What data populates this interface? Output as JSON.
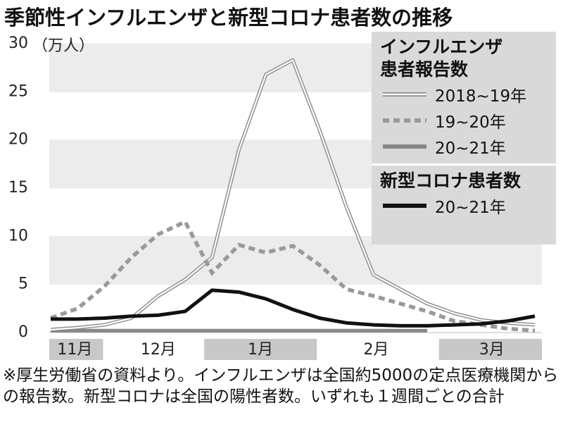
{
  "chart_data": {
    "type": "line",
    "title": "季節性インフルエンザと新型コロナ患者数の推移",
    "y_unit": "（万人）",
    "x": [
      0,
      1,
      2,
      3,
      4,
      5,
      6,
      7,
      8,
      9,
      10,
      11,
      12,
      13,
      14,
      15,
      16,
      17,
      18
    ],
    "xlim": [
      0,
      18
    ],
    "xticks": [
      {
        "value": 0.9,
        "label": "11月"
      },
      {
        "value": 4,
        "label": "12月"
      },
      {
        "value": 7.8,
        "label": "1月"
      },
      {
        "value": 12.1,
        "label": "2月"
      },
      {
        "value": 16.4,
        "label": "3月"
      }
    ],
    "ylim": [
      0,
      30
    ],
    "yticks": [
      0,
      5,
      10,
      15,
      20,
      25,
      30
    ],
    "legend_titles": [
      "インフルエンザ患者報告数",
      "新型コロナ患者数"
    ],
    "series": [
      {
        "name": "2018~19年",
        "color": "#8a8a8a",
        "style": "double",
        "values": [
          0.3,
          0.5,
          0.8,
          1.5,
          3.8,
          5.5,
          7.8,
          19,
          26.8,
          28.3,
          21,
          13,
          6,
          4.5,
          3,
          2,
          1.3,
          1.0,
          0.8
        ]
      },
      {
        "name": "19~20年",
        "color": "#999999",
        "style": "dashed",
        "values": [
          1.5,
          2.5,
          4.8,
          7.8,
          10.2,
          11.5,
          6.2,
          9.1,
          8.3,
          9,
          7,
          4.5,
          3.8,
          3,
          2.2,
          1.2,
          0.8,
          0.4,
          0.2
        ]
      },
      {
        "name": "20~21年",
        "color": "#888888",
        "style": "solid",
        "values": [
          0.2,
          0.2,
          0.2,
          0.2,
          0.2,
          0.2,
          0.2,
          0.2,
          0.2,
          0.2,
          0.2,
          0.2,
          0.2,
          0.2,
          0.2,
          null,
          null,
          null,
          null
        ]
      },
      {
        "name": "20~21年",
        "color": "#111111",
        "style": "solid",
        "values": [
          1.4,
          1.4,
          1.5,
          1.7,
          1.8,
          2.2,
          4.4,
          4.2,
          3.5,
          2.4,
          1.5,
          1.0,
          0.8,
          0.7,
          0.7,
          0.8,
          0.9,
          1.2,
          1.7
        ]
      }
    ],
    "note": "※厚生労働省の資料より。インフルエンザは全国約5000の定点医療機関からの報告数。新型コロナは全国の陽性者数。いずれも１週間ごとの合計"
  }
}
